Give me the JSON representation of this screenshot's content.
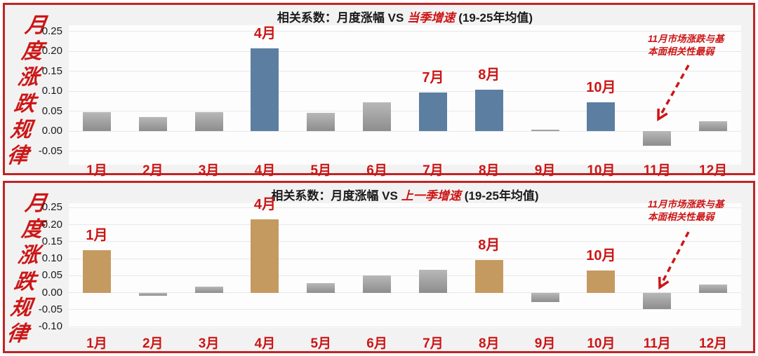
{
  "colors": {
    "red_text": "#cc1616",
    "panel_border": "#c02424",
    "panel_bg": "#f3f2f2",
    "plot_bg": "#fdfdfd",
    "gridline": "#e8e8e8",
    "bar_gray_top": "#b8b8b8",
    "bar_gray_bottom": "#8d8d8d",
    "highlight_blue": "#5c7ea1",
    "highlight_gold": "#c49a61"
  },
  "side_title": {
    "text": "月度涨跌规律",
    "chars": [
      "月",
      "度",
      "涨",
      "跌",
      "规",
      "律"
    ]
  },
  "chart_data": [
    {
      "type": "bar",
      "title_prefix": "相关系数：月度涨幅 VS",
      "title_highlight": "当季增速",
      "title_suffix": "(19-25年均值)",
      "categories": [
        "1月",
        "2月",
        "3月",
        "4月",
        "5月",
        "6月",
        "7月",
        "8月",
        "9月",
        "10月",
        "11月",
        "12月"
      ],
      "values": [
        0.047,
        0.035,
        0.047,
        0.207,
        0.045,
        0.072,
        0.096,
        0.104,
        0.003,
        0.072,
        -0.037,
        0.025
      ],
      "labeled_bars": [
        "4月",
        "7月",
        "8月",
        "10月"
      ],
      "highlight_color": "#5c7ea1",
      "yticks": [
        0.25,
        0.2,
        0.15,
        0.1,
        0.05,
        0.0,
        -0.05
      ],
      "ylim": [
        -0.084,
        0.265
      ],
      "xlabel": "",
      "ylabel": "",
      "grid": true,
      "legend": null,
      "annotation": {
        "line1": "11月市场涨跌与基",
        "line2": "本面相关性最弱",
        "target": "11月"
      }
    },
    {
      "type": "bar",
      "title_prefix": "相关系数：月度涨幅 VS",
      "title_highlight": "上一季增速",
      "title_suffix": "(19-25年均值)",
      "categories": [
        "1月",
        "2月",
        "3月",
        "4月",
        "5月",
        "6月",
        "7月",
        "8月",
        "9月",
        "10月",
        "11月",
        "12月"
      ],
      "values": [
        0.125,
        -0.01,
        0.018,
        0.215,
        0.028,
        0.05,
        0.068,
        0.097,
        -0.028,
        0.066,
        -0.048,
        0.023
      ],
      "labeled_bars": [
        "1月",
        "4月",
        "8月",
        "10月"
      ],
      "highlight_color": "#c49a61",
      "yticks": [
        0.25,
        0.2,
        0.15,
        0.1,
        0.05,
        0.0,
        -0.05,
        -0.1
      ],
      "ylim": [
        -0.104,
        0.263
      ],
      "xlabel": "",
      "ylabel": "",
      "grid": true,
      "legend": null,
      "annotation": {
        "line1": "11月市场涨跌与基",
        "line2": "本面相关性最弱",
        "target": "11月"
      }
    }
  ]
}
